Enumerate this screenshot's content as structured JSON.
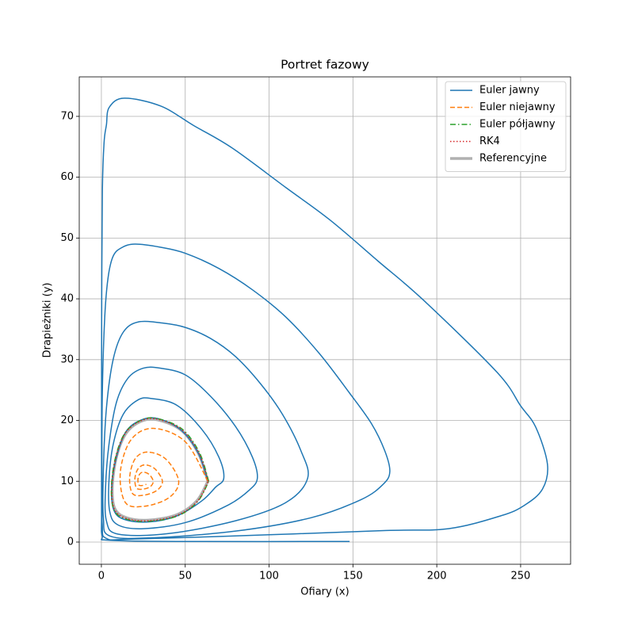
{
  "chart_data": {
    "type": "line",
    "title": "Portret fazowy",
    "xlabel": "Ofiary (x)",
    "ylabel": "Drapieżniki (y)",
    "xlim": [
      -13.2,
      279.8
    ],
    "ylim": [
      -3.65,
      76.5
    ],
    "xticks": [
      0,
      50,
      100,
      150,
      200,
      250
    ],
    "yticks": [
      0,
      10,
      20,
      30,
      40,
      50,
      60,
      70
    ],
    "grid": true,
    "legend": "upper right",
    "series": [
      {
        "name": "Euler jawny",
        "color": "#1f77b4",
        "linestyle": "solid",
        "linewidth": 1.5,
        "x": [
          63.5,
          58,
          48,
          35,
          25,
          15,
          9,
          6.2,
          7.5,
          14,
          28,
          45,
          60,
          68,
          73,
          70,
          60,
          45,
          30,
          22,
          13,
          7,
          4.5,
          5,
          10,
          25,
          50,
          75,
          88,
          93,
          90,
          80,
          65,
          50,
          35,
          25,
          16,
          9,
          4.5,
          2.5,
          3,
          10,
          40,
          80,
          110,
          123,
          119,
          108,
          95,
          80,
          65,
          50,
          37,
          22,
          13,
          7,
          3,
          1.2,
          1.2,
          5,
          30,
          80,
          125,
          155,
          168,
          172,
          169,
          161,
          148,
          130,
          110,
          90,
          70,
          50,
          35,
          20,
          12,
          7,
          4,
          2,
          0.6,
          0.3,
          0.5,
          3,
          20,
          100,
          170,
          207,
          238,
          252,
          263,
          266,
          259,
          250,
          236,
          192,
          165,
          136.6,
          110,
          78,
          55,
          35.4,
          13.7,
          4.7,
          3,
          1.6,
          0.6,
          0.2,
          0.1,
          0.1,
          0.5,
          5,
          50,
          148
        ],
        "values": [
          10,
          14.5,
          18.3,
          20.2,
          20.2,
          18.3,
          14,
          9,
          5.2,
          3.7,
          3.3,
          4.3,
          6.8,
          9,
          10.5,
          14,
          18.5,
          22.5,
          23.6,
          23.4,
          21,
          16,
          10,
          5,
          2.8,
          2.2,
          3.2,
          6,
          8.5,
          10.5,
          14,
          19,
          24,
          27.5,
          28.6,
          28.6,
          27,
          23,
          16,
          9,
          3.5,
          1.3,
          1.4,
          3.5,
          6.5,
          10.5,
          15,
          21,
          26,
          30.5,
          33.5,
          35.3,
          36,
          36.2,
          34.5,
          30,
          22,
          12,
          4,
          1,
          0.7,
          1.8,
          4,
          7,
          9.5,
          11.6,
          15,
          19.5,
          24.5,
          31,
          37,
          41.5,
          45,
          47.5,
          48.5,
          49,
          48.4,
          47,
          43.5,
          37,
          25,
          12,
          3,
          0.6,
          0.5,
          1.2,
          1.9,
          2.2,
          4.3,
          6,
          8.7,
          12.8,
          18.9,
          22.4,
          27.9,
          39.8,
          46.2,
          52.9,
          58.3,
          64.8,
          68.5,
          71.7,
          73,
          71.5,
          68.6,
          65.7,
          58,
          40,
          20,
          5,
          1,
          0.3,
          0.1,
          0.1
        ]
      },
      {
        "name": "Euler niejawny",
        "color": "#ff7f0e",
        "linestyle": "dashed",
        "linewidth": 1.5,
        "x": [
          63.5,
          50.0,
          30.9,
          17.6,
          11.3,
          14.3,
          25.9,
          40.3,
          46.1,
          38.6,
          27.9,
          20.4,
          16.9,
          18.5,
          25.1,
          33.1,
          36.4,
          32.1,
          26.2,
          22.0,
          20.0,
          20.9,
          24.6,
          29.1,
          30.9,
          28.6,
          25.2,
          22.9,
          21.8,
          22.3,
          24.3,
          26.8
        ],
        "values": [
          10,
          16.5,
          18.7,
          16.8,
          11.5,
          6.5,
          5.9,
          7.3,
          10,
          13.6,
          14.8,
          13.8,
          10.8,
          8.0,
          7.7,
          8.5,
          10,
          12.0,
          12.7,
          12.1,
          10.5,
          8.9,
          8.7,
          9.1,
          10,
          11.1,
          11.5,
          11.2,
          10.3,
          9.4,
          9.3,
          9.5
        ]
      },
      {
        "name": "Euler półjawny",
        "color": "#2ca02c",
        "linestyle": "dashdot",
        "linewidth": 1.5,
        "x": [
          64,
          58.5,
          48.5,
          35,
          25,
          14.5,
          8.5,
          6,
          7.5,
          14.5,
          28,
          45.5,
          57.5,
          64
        ],
        "values": [
          10,
          14.7,
          18.5,
          20.2,
          20.2,
          18.1,
          14,
          9,
          5.3,
          3.8,
          3.4,
          4.3,
          6.7,
          10
        ]
      },
      {
        "name": "RK4",
        "color": "#d62728",
        "linestyle": "dotted",
        "linewidth": 1.5,
        "x": [
          63.7,
          58.2,
          48.2,
          35,
          25,
          14.8,
          8.8,
          6.3,
          7.8,
          14.8,
          28,
          45.2,
          57.2,
          63.7
        ],
        "values": [
          10,
          14.6,
          18.4,
          20.1,
          20.1,
          18.1,
          14,
          9,
          5.4,
          3.9,
          3.5,
          4.4,
          6.7,
          10
        ]
      },
      {
        "name": "Referencyjne",
        "color": "#b0b0b0",
        "linestyle": "solid",
        "linewidth": 3.5,
        "x": [
          63.5,
          58,
          48,
          35,
          25,
          15,
          9,
          6.5,
          8,
          15,
          28,
          45,
          57,
          63.5
        ],
        "values": [
          10,
          14.5,
          18.3,
          20,
          20,
          18,
          14,
          9,
          5.5,
          4,
          3.6,
          4.5,
          6.8,
          10
        ]
      }
    ]
  }
}
